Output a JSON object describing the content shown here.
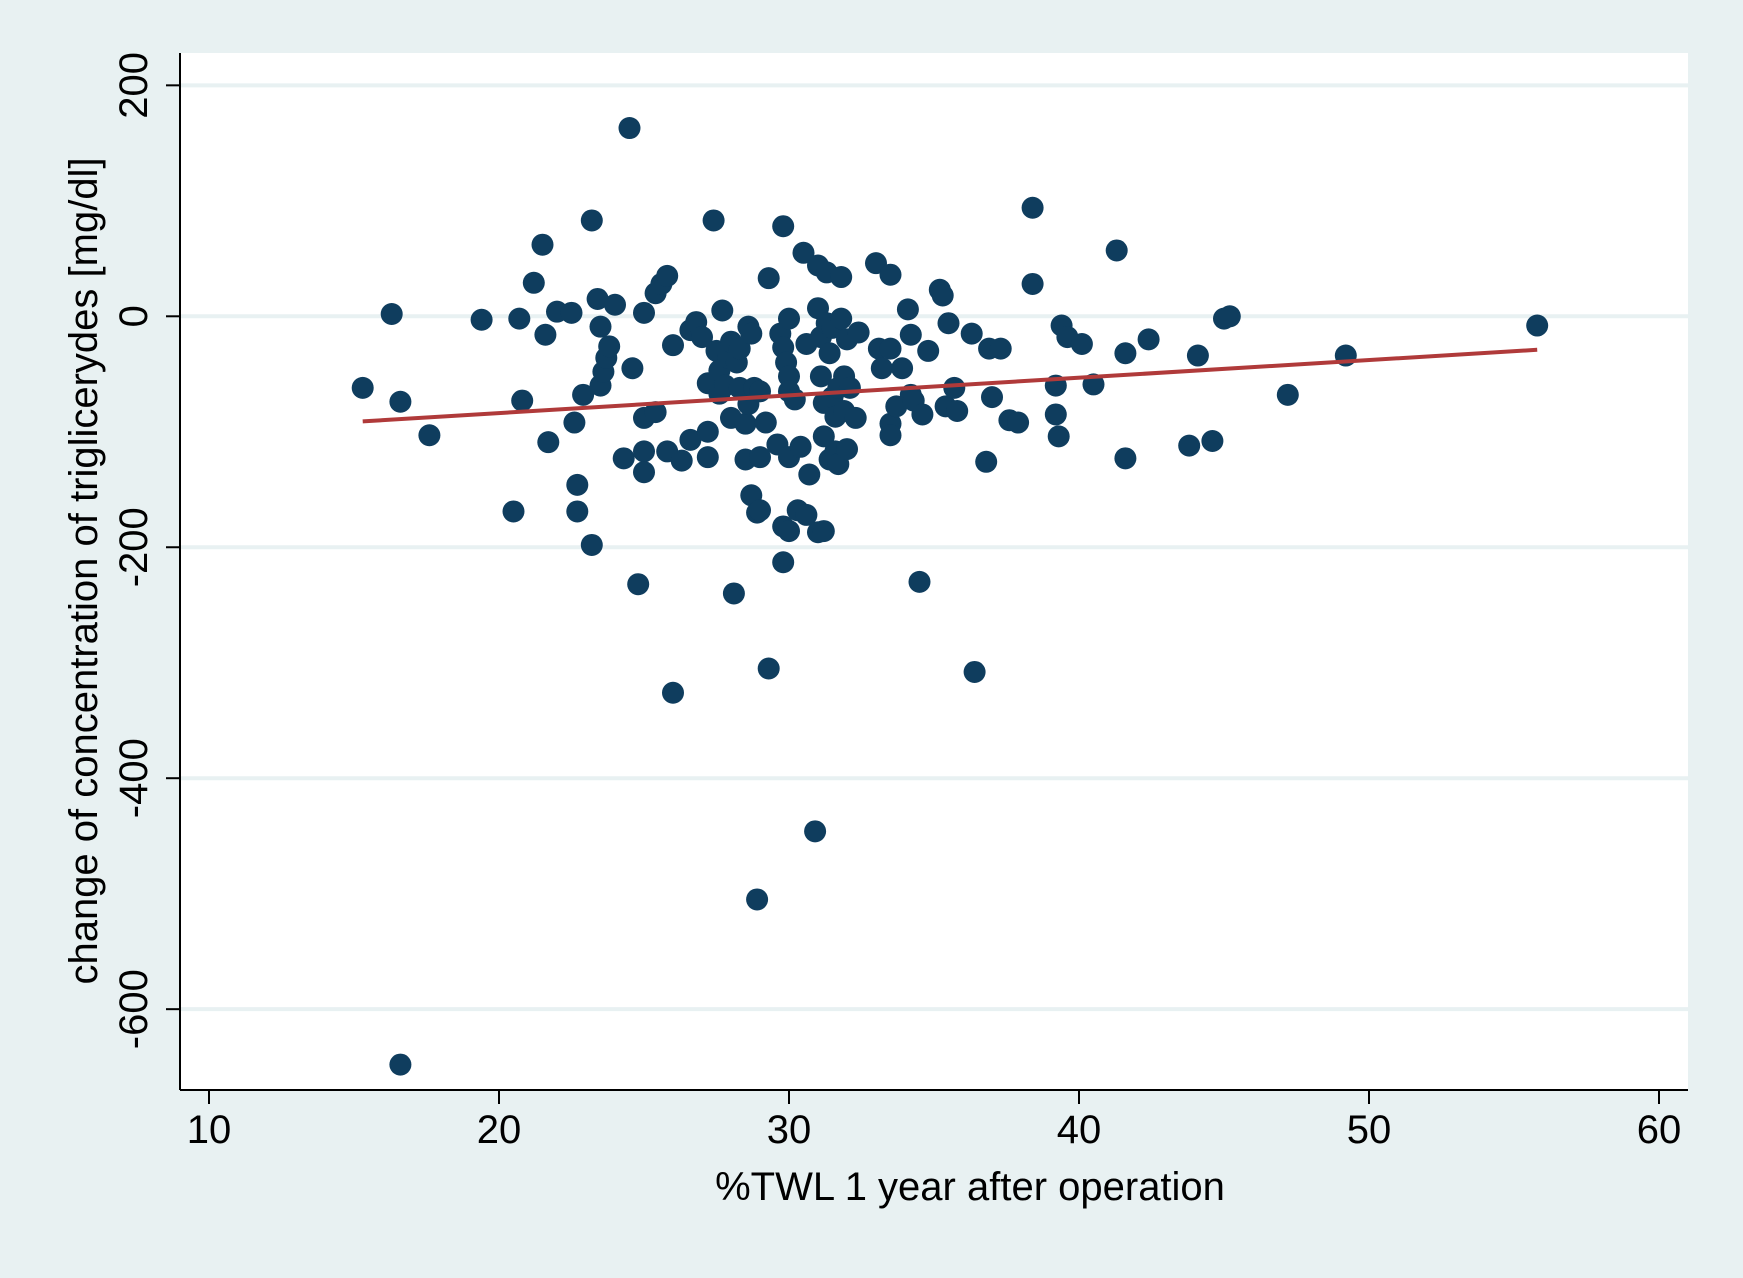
{
  "colors": {
    "outer_background": "#e8f1f2",
    "plot_background": "#ffffff",
    "gridline": "#e8f1f2",
    "marker": "#0f3d5e",
    "fit_line": "#b03a3a",
    "axis": "#000000"
  },
  "chart_data": {
    "type": "scatter",
    "title": "",
    "xlabel": "%TWL 1 year after operation",
    "ylabel": "change of concentration of  triglicerydes [mg/dl]",
    "xlim": [
      9,
      61
    ],
    "ylim": [
      -670,
      228
    ],
    "xticks": [
      10,
      20,
      30,
      40,
      50,
      60
    ],
    "yticks": [
      200,
      0,
      -200,
      -400,
      -600
    ],
    "grid": "horizontal",
    "legend": "none",
    "fit_line": {
      "x": [
        15.3,
        55.8
      ],
      "y": [
        -91,
        -29
      ]
    },
    "series": [
      {
        "name": "observations",
        "points": [
          [
            15.3,
            -62
          ],
          [
            16.6,
            -74
          ],
          [
            16.3,
            2
          ],
          [
            17.6,
            -103
          ],
          [
            16.6,
            -648
          ],
          [
            19.4,
            -3
          ],
          [
            20.5,
            -169
          ],
          [
            20.7,
            -2
          ],
          [
            20.8,
            -73
          ],
          [
            21.2,
            29
          ],
          [
            21.5,
            62
          ],
          [
            21.6,
            -16
          ],
          [
            21.7,
            -109
          ],
          [
            22.0,
            4
          ],
          [
            22.5,
            3
          ],
          [
            22.6,
            -92
          ],
          [
            22.7,
            -146
          ],
          [
            22.7,
            -169
          ],
          [
            22.9,
            -68
          ],
          [
            23.2,
            83
          ],
          [
            23.2,
            -198
          ],
          [
            23.4,
            15
          ],
          [
            23.5,
            -9
          ],
          [
            23.5,
            -60
          ],
          [
            23.6,
            -48
          ],
          [
            23.7,
            -36
          ],
          [
            23.8,
            -26
          ],
          [
            24.0,
            10
          ],
          [
            24.3,
            -123
          ],
          [
            24.5,
            163
          ],
          [
            24.6,
            -45
          ],
          [
            24.8,
            -232
          ],
          [
            25.0,
            3
          ],
          [
            25.0,
            -88
          ],
          [
            25.0,
            -117
          ],
          [
            25.0,
            -135
          ],
          [
            25.4,
            -83
          ],
          [
            25.4,
            20
          ],
          [
            25.6,
            28
          ],
          [
            25.8,
            35
          ],
          [
            25.8,
            -117
          ],
          [
            26.0,
            -326
          ],
          [
            26.0,
            -25
          ],
          [
            26.3,
            -125
          ],
          [
            26.6,
            -12
          ],
          [
            26.6,
            -107
          ],
          [
            26.8,
            -5
          ],
          [
            27.0,
            -18
          ],
          [
            27.2,
            -58
          ],
          [
            27.2,
            -100
          ],
          [
            27.2,
            -122
          ],
          [
            27.4,
            83
          ],
          [
            27.5,
            -30
          ],
          [
            27.6,
            -47
          ],
          [
            27.6,
            -67
          ],
          [
            27.7,
            5
          ],
          [
            27.8,
            -60
          ],
          [
            27.9,
            -36
          ],
          [
            28.0,
            -22
          ],
          [
            28.0,
            -88
          ],
          [
            28.1,
            -240
          ],
          [
            28.2,
            -40
          ],
          [
            28.3,
            -28
          ],
          [
            28.3,
            -62
          ],
          [
            28.5,
            -93
          ],
          [
            28.5,
            -124
          ],
          [
            28.6,
            -9
          ],
          [
            28.6,
            -76
          ],
          [
            28.7,
            -15
          ],
          [
            28.7,
            -155
          ],
          [
            28.8,
            -62
          ],
          [
            28.9,
            -170
          ],
          [
            28.9,
            -505
          ],
          [
            29.0,
            -122
          ],
          [
            29.0,
            -65
          ],
          [
            29.0,
            -168
          ],
          [
            29.2,
            -92
          ],
          [
            29.3,
            33
          ],
          [
            29.3,
            -305
          ],
          [
            29.6,
            -111
          ],
          [
            29.7,
            -15
          ],
          [
            29.8,
            -27
          ],
          [
            29.8,
            -213
          ],
          [
            29.8,
            -182
          ],
          [
            29.8,
            78
          ],
          [
            29.9,
            -40
          ],
          [
            30.0,
            -2
          ],
          [
            30.0,
            -52
          ],
          [
            30.0,
            -65
          ],
          [
            30.0,
            -122
          ],
          [
            30.0,
            -186
          ],
          [
            30.2,
            -72
          ],
          [
            30.3,
            -168
          ],
          [
            30.4,
            -113
          ],
          [
            30.5,
            55
          ],
          [
            30.6,
            -172
          ],
          [
            30.6,
            -24
          ],
          [
            30.7,
            -137
          ],
          [
            30.9,
            -446
          ],
          [
            31.0,
            44
          ],
          [
            31.0,
            -187
          ],
          [
            31.0,
            7
          ],
          [
            31.1,
            -18
          ],
          [
            31.1,
            -52
          ],
          [
            31.2,
            -75
          ],
          [
            31.2,
            -186
          ],
          [
            31.2,
            -104
          ],
          [
            31.3,
            38
          ],
          [
            31.3,
            -6
          ],
          [
            31.4,
            -124
          ],
          [
            31.4,
            -32
          ],
          [
            31.5,
            -10
          ],
          [
            31.5,
            -70
          ],
          [
            31.6,
            -117
          ],
          [
            31.6,
            -87
          ],
          [
            31.7,
            -128
          ],
          [
            31.7,
            -62
          ],
          [
            31.8,
            34
          ],
          [
            31.8,
            -2
          ],
          [
            31.9,
            -52
          ],
          [
            31.9,
            -82
          ],
          [
            32.0,
            -20
          ],
          [
            32.0,
            -115
          ],
          [
            32.1,
            -62
          ],
          [
            32.3,
            -88
          ],
          [
            32.4,
            -14
          ],
          [
            33.0,
            46
          ],
          [
            33.1,
            -28
          ],
          [
            33.2,
            -45
          ],
          [
            33.5,
            36
          ],
          [
            33.5,
            -28
          ],
          [
            33.5,
            -93
          ],
          [
            33.5,
            -103
          ],
          [
            33.7,
            -78
          ],
          [
            33.9,
            -45
          ],
          [
            34.1,
            6
          ],
          [
            34.2,
            -16
          ],
          [
            34.2,
            -68
          ],
          [
            34.3,
            -73
          ],
          [
            34.5,
            -230
          ],
          [
            34.6,
            -85
          ],
          [
            34.8,
            -30
          ],
          [
            35.2,
            23
          ],
          [
            35.3,
            18
          ],
          [
            35.4,
            -78
          ],
          [
            35.5,
            -6
          ],
          [
            35.7,
            -62
          ],
          [
            35.8,
            -82
          ],
          [
            36.3,
            -15
          ],
          [
            36.4,
            -308
          ],
          [
            36.8,
            -126
          ],
          [
            36.9,
            -28
          ],
          [
            37.0,
            -70
          ],
          [
            37.3,
            -28
          ],
          [
            37.6,
            -90
          ],
          [
            37.9,
            -92
          ],
          [
            38.4,
            94
          ],
          [
            38.4,
            28
          ],
          [
            39.2,
            -60
          ],
          [
            39.2,
            -85
          ],
          [
            39.3,
            -104
          ],
          [
            39.4,
            -8
          ],
          [
            39.6,
            -18
          ],
          [
            40.1,
            -24
          ],
          [
            40.5,
            -59
          ],
          [
            41.3,
            57
          ],
          [
            41.6,
            -32
          ],
          [
            41.6,
            -123
          ],
          [
            42.4,
            -20
          ],
          [
            43.8,
            -112
          ],
          [
            44.1,
            -34
          ],
          [
            44.6,
            -108
          ],
          [
            45.0,
            -2
          ],
          [
            45.2,
            0
          ],
          [
            47.2,
            -68
          ],
          [
            49.2,
            -34
          ],
          [
            55.8,
            -8
          ]
        ]
      }
    ]
  }
}
